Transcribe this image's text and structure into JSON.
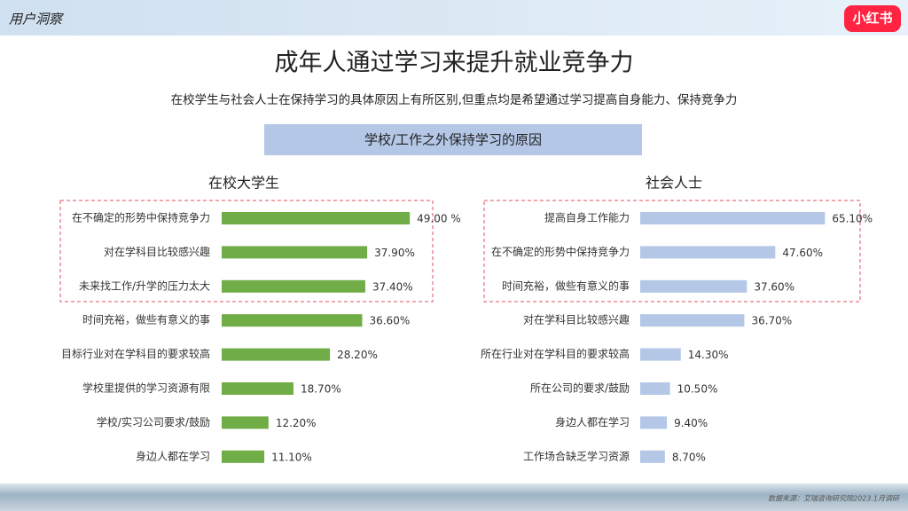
{
  "header": "用户洞察",
  "logo": "小红书",
  "title": "成年人通过学习来提升就业竞争力",
  "subtitle": "在校学生与社会人士在保持学习的具体原因上有所区别,但重点均是希望通过学习提高自身能力、保持竞争力",
  "banner": "学校/工作之外保持学习的原因",
  "source": "数据来源：艾瑞咨询研究院2023.1月调研",
  "chart_data": [
    {
      "type": "bar",
      "title": "在校大学生",
      "color": "#70ad47",
      "categories": [
        "在不确定的形势中保持竞争力",
        "对在学科目比较感兴趣",
        "未来找工作/升学的压力太大",
        "时间充裕，做些有意义的事",
        "目标行业对在学科目的要求较高",
        "学校里提供的学习资源有限",
        "学校/实习公司要求/鼓励",
        "身边人都在学习"
      ],
      "values": [
        49.0,
        37.9,
        37.4,
        36.6,
        28.2,
        18.7,
        12.2,
        11.1
      ],
      "value_labels": [
        "49.00 %",
        "37.90%",
        "37.40%",
        "36.60%",
        "28.20%",
        "18.70%",
        "12.20%",
        "11.10%"
      ]
    },
    {
      "type": "bar",
      "title": "社会人士",
      "color": "#b4c7e7",
      "categories": [
        "提高自身工作能力",
        "在不确定的形势中保持竞争力",
        "时间充裕，做些有意义的事",
        "对在学科目比较感兴趣",
        "所在行业对在学科目的要求较高",
        "所在公司的要求/鼓励",
        "身边人都在学习",
        "工作场合缺乏学习资源"
      ],
      "values": [
        65.1,
        47.6,
        37.6,
        36.7,
        14.3,
        10.5,
        9.4,
        8.7
      ],
      "value_labels": [
        "65.10%",
        "47.60%",
        "37.60%",
        "36.70%",
        "14.30%",
        "10.50%",
        "9.40%",
        "8.70%"
      ]
    }
  ]
}
